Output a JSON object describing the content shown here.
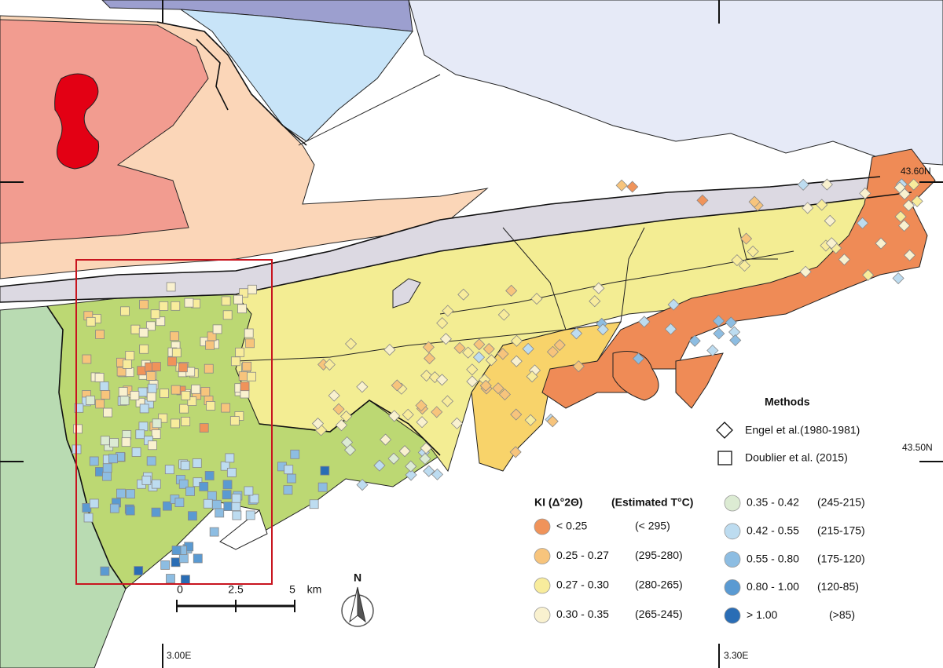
{
  "coordinates": {
    "latitude": [
      "43.60N",
      "43.50N"
    ],
    "longitude": [
      "3.00E",
      "3.30E"
    ]
  },
  "scale_bar": {
    "ticks": [
      0,
      2.5,
      5
    ],
    "unit": "km"
  },
  "north_arrow": "N",
  "legend": {
    "methods": {
      "title": "Methods",
      "items": [
        {
          "symbol": "diamond",
          "label": "Engel  et al.(1980-1981)"
        },
        {
          "symbol": "square",
          "label": "Doublier et al. (2015)"
        }
      ]
    },
    "ki": {
      "header": "KI (Δ°2Θ)",
      "temperature_header": "(Estimated T°C)",
      "classes": [
        {
          "range": "< 0.25",
          "temperature": "(< 295)",
          "color": "#f0935a"
        },
        {
          "range": "0.25 - 0.27",
          "temperature": "(295-280)",
          "color": "#f7c47c"
        },
        {
          "range": "0.27 - 0.30",
          "temperature": "(280-265)",
          "color": "#f8ec9c"
        },
        {
          "range": "0.30 - 0.35",
          "temperature": "(265-245)",
          "color": "#f9f1cf"
        },
        {
          "range": "0.35 - 0.42",
          "temperature": "(245-215)",
          "color": "#dcebd3"
        },
        {
          "range": "0.42 - 0.55",
          "temperature": "(215-175)",
          "color": "#bddcf0"
        },
        {
          "range": "0.55 - 0.80",
          "temperature": "(175-120)",
          "color": "#8dbde2"
        },
        {
          "range": "0.80 - 1.00",
          "temperature": "(120-85)",
          "color": "#5a9ad2"
        },
        {
          "range": "> 1.00",
          "temperature": "(>85)",
          "color": "#2a6db5"
        }
      ]
    }
  }
}
